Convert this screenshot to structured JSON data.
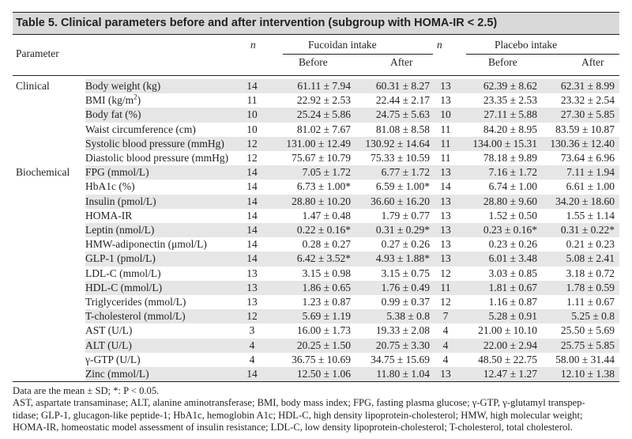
{
  "table": {
    "title": "Table 5. Clinical parameters before and after intervention (subgroup with HOMA-IR < 2.5)",
    "header": {
      "parameter": "Parameter",
      "n": "n",
      "fucoidan": "Fucoidan intake",
      "placebo": "Placebo intake",
      "before": "Before",
      "after": "After"
    },
    "rows": [
      {
        "cat": "Clinical",
        "param": "Body weight (kg)",
        "n1": "14",
        "fb": "61.11 ± 7.94",
        "fa": "60.31 ± 8.27",
        "n2": "13",
        "pb": "62.39 ± 8.62",
        "pa": "62.31 ± 8.99"
      },
      {
        "cat": "",
        "param": "BMI (kg/m",
        "sup": "2",
        "param_end": ")",
        "n1": "11",
        "fb": "22.92 ± 2.53",
        "fa": "22.44 ± 2.17",
        "n2": "13",
        "pb": "23.35 ± 2.53",
        "pa": "23.32 ± 2.54"
      },
      {
        "cat": "",
        "param": "Body fat (%)",
        "n1": "10",
        "fb": "25.24 ± 5.86",
        "fa": "24.75 ± 5.63",
        "n2": "10",
        "pb": "27.11 ± 5.88",
        "pa": "27.30 ± 5.85"
      },
      {
        "cat": "",
        "param": "Waist circumference (cm)",
        "n1": "10",
        "fb": "81.02 ± 7.67",
        "fa": "81.08 ± 8.58",
        "n2": "11",
        "pb": "84.20 ± 8.95",
        "pa": "83.59 ± 10.87"
      },
      {
        "cat": "",
        "param": "Systolic blood pressure (mmHg)",
        "n1": "12",
        "fb": "131.00 ± 12.49",
        "fa": "130.92 ± 14.64",
        "n2": "11",
        "pb": "134.00 ± 15.31",
        "pa": "130.36 ± 12.40"
      },
      {
        "cat": "",
        "param": "Diastolic blood pressure (mmHg)",
        "n1": "12",
        "fb": "75.67 ± 10.79",
        "fa": "75.33 ± 10.59",
        "n2": "11",
        "pb": "78.18 ± 9.89",
        "pa": "73.64 ± 6.96"
      },
      {
        "cat": "Biochemical",
        "param": "FPG (mmol/L)",
        "n1": "14",
        "fb": "7.05 ± 1.72",
        "fa": "6.77 ± 1.72",
        "n2": "13",
        "pb": "7.16 ± 1.72",
        "pa": "7.11 ± 1.94"
      },
      {
        "cat": "",
        "param": "HbA1c (%)",
        "n1": "14",
        "fb": "6.73 ± 1.00*",
        "fa": "6.59 ± 1.00*",
        "n2": "14",
        "pb": "6.74 ± 1.00",
        "pa": "6.61 ± 1.00"
      },
      {
        "cat": "",
        "param": "Insulin (pmol/L)",
        "n1": "14",
        "fb": "28.80 ± 10.20",
        "fa": "36.60 ± 16.20",
        "n2": "13",
        "pb": "28.80 ± 9.60",
        "pa": "34.20 ± 18.60"
      },
      {
        "cat": "",
        "param": "HOMA-IR",
        "n1": "14",
        "fb": "1.47 ± 0.48",
        "fa": "1.79 ± 0.77",
        "n2": "13",
        "pb": "1.52 ± 0.50",
        "pa": "1.55 ± 1.14"
      },
      {
        "cat": "",
        "param": "Leptin (nmol/L)",
        "n1": "14",
        "fb": "0.22 ± 0.16*",
        "fa": "0.31 ± 0.29*",
        "n2": "13",
        "pb": "0.23 ± 0.16*",
        "pa": "0.31 ± 0.22*"
      },
      {
        "cat": "",
        "param": "HMW-adiponectin (μmol/L)",
        "n1": "14",
        "fb": "0.28 ± 0.27",
        "fa": "0.27 ± 0.26",
        "n2": "13",
        "pb": "0.23 ± 0.26",
        "pa": "0.21 ± 0.23"
      },
      {
        "cat": "",
        "param": "GLP-1 (pmol/L)",
        "n1": "14",
        "fb": "6.42 ± 3.52*",
        "fa": "4.93 ± 1.88*",
        "n2": "13",
        "pb": "6.01 ± 3.48",
        "pa": "5.08 ± 2.41"
      },
      {
        "cat": "",
        "param": "LDL-C (mmol/L)",
        "n1": "13",
        "fb": "3.15 ± 0.98",
        "fa": "3.15 ± 0.75",
        "n2": "12",
        "pb": "3.03 ± 0.85",
        "pa": "3.18 ± 0.72"
      },
      {
        "cat": "",
        "param": "HDL-C (mmol/L)",
        "n1": "13",
        "fb": "1.86 ± 0.65",
        "fa": "1.76 ± 0.49",
        "n2": "11",
        "pb": "1.81 ± 0.67",
        "pa": "1.78 ± 0.59"
      },
      {
        "cat": "",
        "param": "Triglycerides (mmol/L)",
        "n1": "13",
        "fb": "1.23 ± 0.87",
        "fa": "0.99 ± 0.37",
        "n2": "12",
        "pb": "1.16 ± 0.87",
        "pa": "1.11 ± 0.67"
      },
      {
        "cat": "",
        "param": "T-cholesterol (mmol/L)",
        "n1": "12",
        "fb": "5.69 ± 1.19",
        "fa": "5.38 ± 0.8",
        "n2": "7",
        "pb": "5.28 ± 0.91",
        "pa": "5.25 ± 0.8"
      },
      {
        "cat": "",
        "param": "AST (U/L)",
        "n1": "3",
        "fb": "16.00 ± 1.73",
        "fa": "19.33 ± 2.08",
        "n2": "4",
        "pb": "21.00 ± 10.10",
        "pa": "25.50 ± 5.69"
      },
      {
        "cat": "",
        "param": "ALT (U/L)",
        "n1": "4",
        "fb": "20.25 ± 1.50",
        "fa": "20.75 ± 3.30",
        "n2": "4",
        "pb": "22.00 ± 2.94",
        "pa": "25.75 ± 5.85"
      },
      {
        "cat": "",
        "param": "γ-GTP (U/L)",
        "n1": "4",
        "fb": "36.75 ± 10.69",
        "fa": "34.75 ± 15.69",
        "n2": "4",
        "pb": "48.50 ± 22.75",
        "pa": "58.00 ± 31.44"
      },
      {
        "cat": "",
        "param": "Zinc (mmol/L)",
        "n1": "14",
        "fb": "12.50 ± 1.06",
        "fa": "11.80 ± 1.04",
        "n2": "13",
        "pb": "12.47 ± 1.27",
        "pa": "12.10 ± 1.38"
      }
    ],
    "notes": [
      "Data are the mean ± SD; *: P < 0.05.",
      "AST, aspartate transaminase; ALT, alanine aminotransferase; BMI, body mass index; FPG, fasting plasma glucose; γ-GTP, γ-glutamyl transpep-",
      "tidase; GLP-1, glucagon-like peptide-1; HbA1c, hemoglobin A1c; HDL-C, high density lipoprotein-cholesterol; HMW, high molecular weight;",
      "HOMA-IR, homeostatic model assessment of insulin resistance; LDL-C, low density lipoprotein-cholesterol; T-cholesterol, total cholesterol."
    ]
  },
  "colors": {
    "title_bg": "#d9d9d9",
    "row_shade": "#e6e6e6",
    "text": "#231f20"
  }
}
